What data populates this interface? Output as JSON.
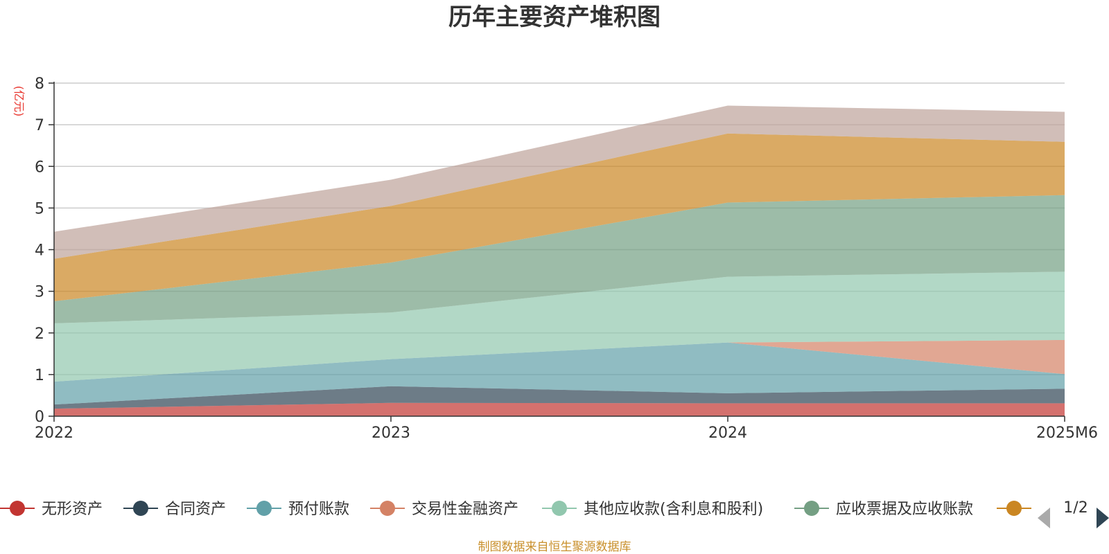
{
  "chart_data": {
    "type": "area",
    "stacked": true,
    "title": "历年主要资产堆积图",
    "y_unit": "(亿元)",
    "x": [
      "2022",
      "2023",
      "2024",
      "2025M6"
    ],
    "ylim": [
      0,
      8
    ],
    "yticks": [
      0,
      1,
      2,
      3,
      4,
      5,
      6,
      7,
      8
    ],
    "grid": true,
    "legend_position": "bottom",
    "series": [
      {
        "name": "无形资产",
        "color": "#c23531",
        "values": [
          0.18,
          0.32,
          0.31,
          0.31
        ]
      },
      {
        "name": "合同资产",
        "color": "#2f4554",
        "values": [
          0.1,
          0.4,
          0.24,
          0.35
        ]
      },
      {
        "name": "预付账款",
        "color": "#61a0a8",
        "values": [
          0.55,
          0.65,
          1.22,
          0.35
        ]
      },
      {
        "name": "交易性金融资产",
        "color": "#d48265",
        "values": [
          0.0,
          0.0,
          0.0,
          0.82
        ]
      },
      {
        "name": "其他应收款(含利息和股利)",
        "color": "#91c7ae",
        "values": [
          1.4,
          1.12,
          1.58,
          1.64
        ]
      },
      {
        "name": "应收票据及应收账款",
        "color": "#749f83",
        "values": [
          0.53,
          1.2,
          1.78,
          1.84
        ]
      },
      {
        "name": "",
        "color": "#ca8622",
        "values": [
          1.02,
          1.36,
          1.66,
          1.28
        ]
      },
      {
        "name": "",
        "color": "#bda29a",
        "values": [
          0.65,
          0.63,
          0.67,
          0.72
        ]
      }
    ],
    "legend_page": "1/2",
    "source_note": "制图数据来自恒生聚源数据库"
  }
}
